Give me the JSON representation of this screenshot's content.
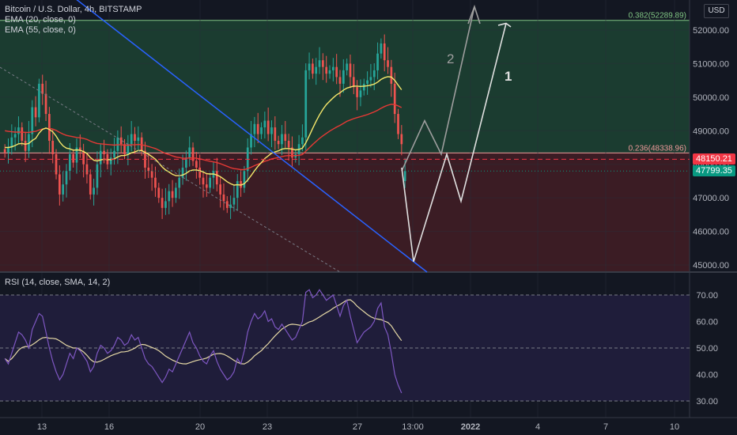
{
  "header": {
    "title": "Bitcoin / U.S. Dollar, 4h, BITSTAMP",
    "ema_fast_label": "EMA (20, close, 0)",
    "ema_slow_label": "EMA (55, close, 0)",
    "currency": "USD"
  },
  "rsi_panel": {
    "label": "RSI (14, close, SMA, 14, 2)"
  },
  "fib_levels": [
    {
      "label": "0.382(52289.89)",
      "price": 52289.89,
      "color": "#81c784"
    },
    {
      "label": "0.236(48338.96)",
      "price": 48338.96,
      "color": "#ef9a9a"
    }
  ],
  "price_tags": [
    {
      "label": "48150.21",
      "price": 48150.21,
      "color": "#f23645"
    },
    {
      "label": "47799.35",
      "price": 47799.35,
      "color": "#089981"
    }
  ],
  "wave_labels": [
    "2",
    "1"
  ],
  "colors": {
    "background": "#131722",
    "up": "#26a69a",
    "down": "#ef5350",
    "ema_fast": "#f6e86b",
    "ema_slow": "#e53935",
    "trendline": "#2962ff",
    "rsi_line": "#7e57c2",
    "rsi_ma": "#e6d9a6",
    "green_zone": "#1f4a35",
    "red_zone": "#4a1f25",
    "rsi_band": "#1f1d3a"
  },
  "chart_data": [
    {
      "type": "candlestick",
      "title": "Bitcoin / U.S. Dollar, 4h, BITSTAMP",
      "ylim": [
        44900,
        52700
      ],
      "y_ticks": [
        45000,
        46000,
        47000,
        48000,
        49000,
        50000,
        51000,
        52000
      ],
      "y_tick_labels": [
        "45000.00",
        "46000.00",
        "47000.00",
        "48000.00",
        "49000.00",
        "50000.00",
        "51000.00",
        "52000.00"
      ],
      "x_tick_labels": [
        "13",
        "16",
        "20",
        "23",
        "27",
        "13:00",
        "2022",
        "4",
        "7",
        "10"
      ],
      "close": [
        48350,
        48500,
        48800,
        48900,
        49100,
        48700,
        48400,
        48900,
        49700,
        49400,
        50400,
        50100,
        49500,
        48700,
        48300,
        47700,
        47100,
        47400,
        47800,
        48300,
        48050,
        48500,
        48400,
        48000,
        47700,
        47100,
        47300,
        48000,
        48400,
        48300,
        48000,
        48200,
        48400,
        48800,
        48600,
        48300,
        48600,
        48900,
        48700,
        48800,
        48400,
        47900,
        47800,
        47600,
        47300,
        47000,
        46700,
        46900,
        47200,
        47000,
        47300,
        47600,
        47900,
        48200,
        48500,
        48100,
        47900,
        47600,
        47400,
        47300,
        47600,
        47800,
        47400,
        47100,
        46900,
        46700,
        46800,
        47000,
        47500,
        47300,
        47800,
        48500,
        48900,
        49200,
        48900,
        49100,
        49300,
        48900,
        49100,
        48700,
        48600,
        48900,
        48700,
        48500,
        48200,
        48300,
        48600,
        48800,
        50800,
        51000,
        50700,
        50900,
        51100,
        50900,
        50700,
        50800,
        50900,
        50600,
        50400,
        50800,
        51000,
        50600,
        50300,
        50000,
        50200,
        50400,
        50500,
        50600,
        50800,
        51300,
        51600,
        51100,
        50900,
        50400,
        49500,
        48900,
        48600
      ],
      "open": [
        48450,
        48350,
        48500,
        48800,
        48900,
        49100,
        48700,
        48400,
        48900,
        49700,
        49400,
        50400,
        50100,
        49500,
        48700,
        48300,
        47700,
        47100,
        47400,
        47800,
        48300,
        48050,
        48500,
        48400,
        48000,
        47700,
        47100,
        47300,
        48000,
        48400,
        48300,
        48000,
        48200,
        48400,
        48800,
        48600,
        48300,
        48600,
        48900,
        48700,
        48800,
        48400,
        47900,
        47800,
        47600,
        47300,
        47000,
        46700,
        46900,
        47200,
        47000,
        47300,
        47600,
        47900,
        48200,
        48500,
        48100,
        47900,
        47600,
        47400,
        47300,
        47600,
        47800,
        47400,
        47100,
        46900,
        46700,
        46800,
        47000,
        47500,
        47300,
        47800,
        48500,
        48900,
        49200,
        48900,
        49100,
        49300,
        48900,
        49100,
        48700,
        48600,
        48900,
        48700,
        48500,
        48200,
        48300,
        48600,
        48800,
        50800,
        51000,
        50700,
        50900,
        51100,
        50900,
        50700,
        50800,
        50900,
        50600,
        50400,
        50800,
        51000,
        50600,
        50300,
        50000,
        50200,
        50400,
        50500,
        50600,
        50800,
        51300,
        51600,
        51100,
        50900,
        50400,
        49500,
        48900
      ],
      "last_candle": {
        "open": 47500,
        "close": 47799.35
      },
      "ema20": [
        48500,
        48500,
        48520,
        48560,
        48610,
        48620,
        48600,
        48620,
        48710,
        48770,
        48930,
        49040,
        49080,
        49040,
        48970,
        48840,
        48670,
        48550,
        48480,
        48460,
        48420,
        48430,
        48420,
        48380,
        48320,
        48200,
        48120,
        48100,
        48130,
        48150,
        48140,
        48140,
        48160,
        48220,
        48260,
        48260,
        48290,
        48340,
        48370,
        48410,
        48410,
        48350,
        48300,
        48230,
        48150,
        48040,
        47920,
        47830,
        47770,
        47700,
        47660,
        47660,
        47680,
        47730,
        47800,
        47830,
        47830,
        47810,
        47770,
        47720,
        47710,
        47710,
        47680,
        47630,
        47560,
        47480,
        47420,
        47380,
        47390,
        47380,
        47420,
        47530,
        47660,
        47810,
        47940,
        48050,
        48170,
        48250,
        48330,
        48370,
        48400,
        48450,
        48470,
        48470,
        48450,
        48430,
        48440,
        48480,
        48640,
        48850,
        49070,
        49280,
        49470,
        49640,
        49780,
        49880,
        49980,
        50070,
        50130,
        50210,
        50270,
        50300,
        50330,
        50330,
        50320,
        50330,
        50340,
        50360,
        50390,
        50450,
        50530,
        50580,
        50610,
        50600,
        50500,
        50360,
        50220
      ],
      "ema55": [
        49000,
        48980,
        48970,
        48960,
        48960,
        48960,
        48950,
        48950,
        48970,
        48980,
        49020,
        49050,
        49070,
        49070,
        49050,
        49010,
        48950,
        48900,
        48860,
        48840,
        48820,
        48800,
        48790,
        48770,
        48740,
        48690,
        48650,
        48620,
        48610,
        48600,
        48590,
        48580,
        48570,
        48580,
        48580,
        48570,
        48570,
        48580,
        48580,
        48590,
        48580,
        48560,
        48530,
        48500,
        48470,
        48420,
        48370,
        48320,
        48290,
        48250,
        48220,
        48200,
        48180,
        48180,
        48190,
        48190,
        48180,
        48160,
        48140,
        48110,
        48090,
        48070,
        48050,
        48020,
        47980,
        47940,
        47900,
        47870,
        47860,
        47840,
        47840,
        47870,
        47910,
        47960,
        48000,
        48040,
        48090,
        48120,
        48160,
        48180,
        48200,
        48230,
        48250,
        48260,
        48260,
        48260,
        48270,
        48290,
        48390,
        48490,
        48590,
        48680,
        48770,
        48850,
        48920,
        48990,
        49050,
        49110,
        49160,
        49220,
        49280,
        49320,
        49360,
        49390,
        49420,
        49450,
        49480,
        49520,
        49560,
        49610,
        49670,
        49720,
        49760,
        49790,
        49780,
        49740,
        49690
      ],
      "trendline": {
        "start_price": 54500,
        "end_price": 44900
      },
      "projection_wave_2": [
        47800,
        49300,
        48300,
        52700
      ],
      "projection_wave_1": [
        47900,
        45100,
        48300,
        46900,
        52200
      ]
    },
    {
      "type": "line",
      "title": "RSI (14, close, SMA, 14, 2)",
      "ylim": [
        27,
        77
      ],
      "y_ticks": [
        30,
        40,
        50,
        60,
        70
      ],
      "y_tick_labels": [
        "30.00",
        "40.00",
        "50.00",
        "60.00",
        "70.00"
      ],
      "rsi": [
        46,
        44,
        48,
        52,
        56,
        55,
        53,
        50,
        57,
        60,
        63,
        62,
        56,
        50,
        45,
        41,
        38,
        40,
        44,
        48,
        46,
        50,
        49,
        47,
        45,
        41,
        43,
        48,
        51,
        50,
        48,
        49,
        51,
        54,
        53,
        51,
        52,
        55,
        53,
        54,
        50,
        46,
        44,
        43,
        41,
        39,
        37,
        39,
        42,
        41,
        44,
        47,
        50,
        53,
        56,
        52,
        50,
        47,
        45,
        44,
        47,
        49,
        45,
        42,
        40,
        38,
        39,
        41,
        46,
        44,
        49,
        56,
        60,
        63,
        61,
        62,
        64,
        60,
        61,
        58,
        57,
        59,
        57,
        55,
        53,
        54,
        57,
        60,
        71,
        72,
        69,
        70,
        72,
        70,
        68,
        69,
        70,
        66,
        62,
        66,
        68,
        62,
        57,
        52,
        54,
        56,
        57,
        58,
        60,
        65,
        67,
        58,
        55,
        48,
        40,
        36,
        33
      ]
    }
  ]
}
